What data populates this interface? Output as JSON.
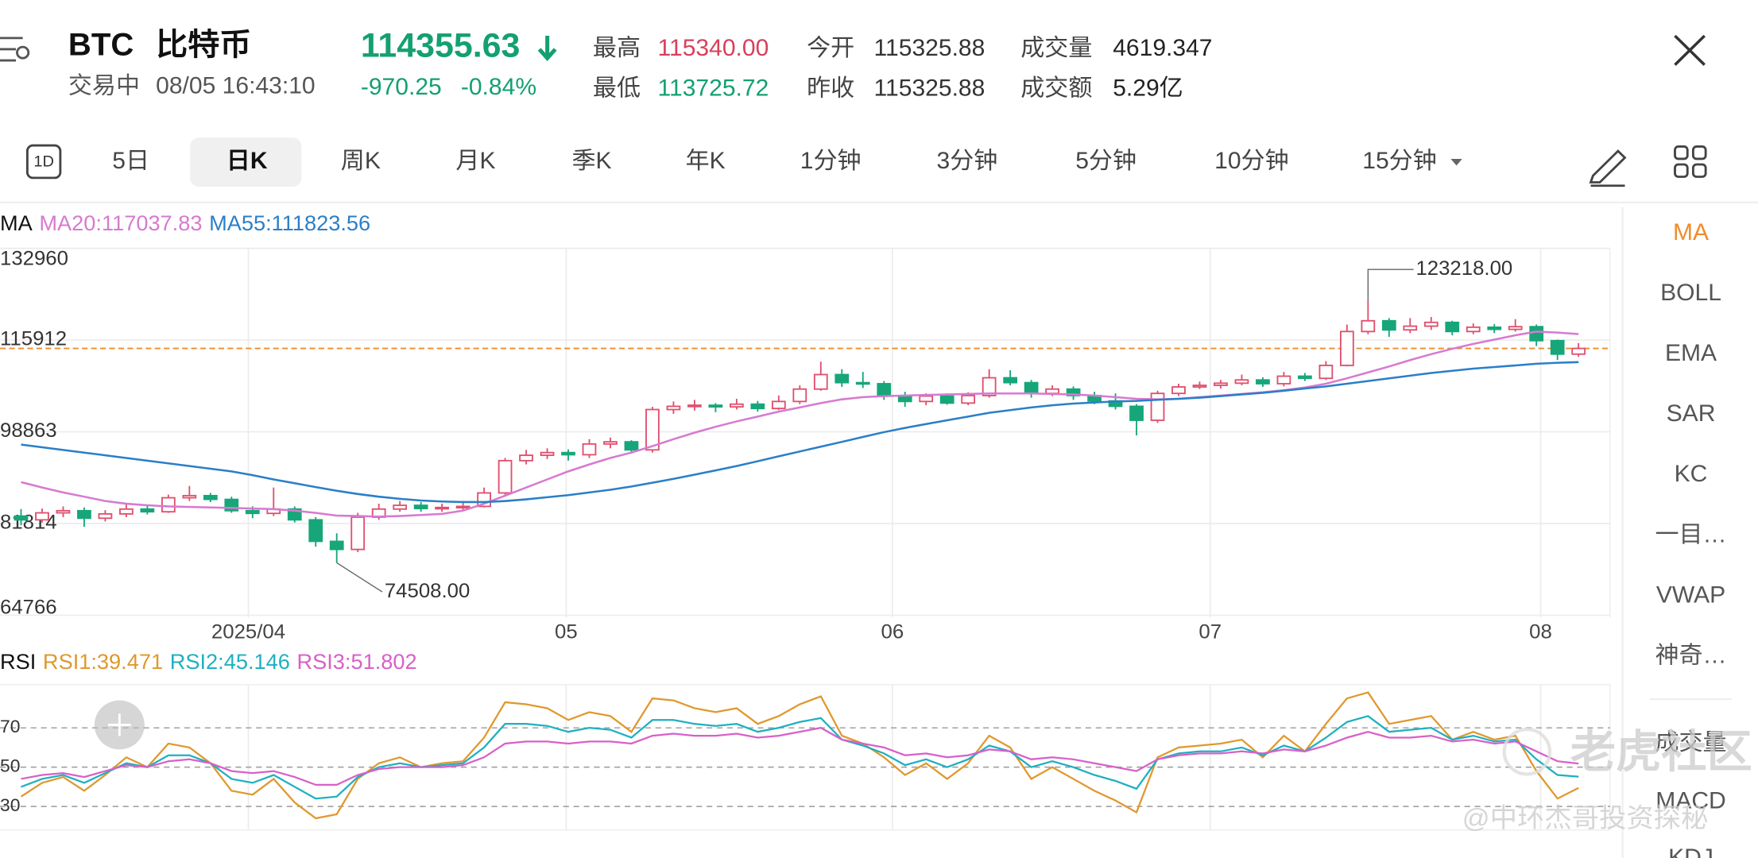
{
  "header": {
    "symbol": "BTC",
    "name": "比特币",
    "status": "交易中",
    "time": "08/05 16:43:10",
    "price": "114355.63",
    "change": "-970.25",
    "change_pct": "-0.84%",
    "stats": [
      {
        "label": "最高",
        "value": "115340.00",
        "color": "#d8405a"
      },
      {
        "label": "最低",
        "value": "113725.72",
        "color": "#14a070"
      },
      {
        "label": "今开",
        "value": "115325.88",
        "color": "#333333"
      },
      {
        "label": "昨收",
        "value": "115325.88",
        "color": "#333333"
      },
      {
        "label": "成交量",
        "value": "4619.347",
        "color": "#222222"
      },
      {
        "label": "成交额",
        "value": "5.29亿",
        "color": "#222222"
      }
    ]
  },
  "calendar_icon": "1D",
  "tabs": [
    "5日",
    "日K",
    "周K",
    "月K",
    "季K",
    "年K",
    "1分钟",
    "3分钟",
    "5分钟",
    "10分钟",
    "15分钟"
  ],
  "selected_tab": 1,
  "indicators": [
    "MA",
    "BOLL",
    "EMA",
    "SAR",
    "KC",
    "一目…",
    "VWAP",
    "神奇…",
    "成交量",
    "MACD",
    "KDJ"
  ],
  "active_indicator": 0,
  "chart": {
    "type": "candlestick",
    "legend_label": "MA",
    "up_color": "#e0506e",
    "down_color": "#17a67a",
    "ylim": [
      64766,
      132960
    ],
    "yticks": [
      132960,
      115912,
      98863,
      81814,
      64766
    ],
    "xlim": [
      -1,
      75.5
    ],
    "xticks": [
      {
        "value": 10.8,
        "label": "2025/04"
      },
      {
        "value": 25.9,
        "label": "05"
      },
      {
        "value": 41.4,
        "label": "06"
      },
      {
        "value": 56.5,
        "label": "07"
      },
      {
        "value": 72.2,
        "label": "08"
      }
    ],
    "last_price": 114355.63,
    "last_price_color": "#f08c2a",
    "candles": [
      [
        83200,
        84500,
        81500,
        82500
      ],
      [
        82500,
        84600,
        82000,
        83800
      ],
      [
        83800,
        85000,
        83000,
        84200
      ],
      [
        84200,
        84800,
        81200,
        82800
      ],
      [
        82800,
        84300,
        82200,
        83600
      ],
      [
        83600,
        85500,
        83000,
        84500
      ],
      [
        84500,
        85200,
        83500,
        84000
      ],
      [
        84000,
        87200,
        83800,
        86600
      ],
      [
        86600,
        88800,
        86000,
        87000
      ],
      [
        87000,
        87500,
        85800,
        86300
      ],
      [
        86300,
        86800,
        83800,
        84200
      ],
      [
        84200,
        85000,
        82800,
        83700
      ],
      [
        83700,
        88500,
        83200,
        84500
      ],
      [
        84500,
        85000,
        82000,
        82500
      ],
      [
        82500,
        83000,
        77500,
        78500
      ],
      [
        78500,
        80000,
        74508,
        77000
      ],
      [
        77000,
        83800,
        76500,
        83000
      ],
      [
        83000,
        85500,
        82500,
        84500
      ],
      [
        84500,
        86000,
        84000,
        85200
      ],
      [
        85200,
        85800,
        84000,
        84600
      ],
      [
        84600,
        85500,
        84000,
        84800
      ],
      [
        84800,
        86000,
        84300,
        85000
      ],
      [
        85000,
        88500,
        84800,
        87500
      ],
      [
        87500,
        94000,
        87200,
        93500
      ],
      [
        93500,
        95500,
        92800,
        94500
      ],
      [
        94500,
        95800,
        93800,
        95000
      ],
      [
        95000,
        95600,
        93500,
        94600
      ],
      [
        94600,
        97500,
        94000,
        96600
      ],
      [
        96600,
        97800,
        95800,
        97000
      ],
      [
        97000,
        97300,
        94800,
        95500
      ],
      [
        95500,
        103500,
        95000,
        103000
      ],
      [
        103000,
        104500,
        102200,
        103600
      ],
      [
        103600,
        104800,
        102800,
        103800
      ],
      [
        103800,
        104200,
        102500,
        103500
      ],
      [
        103500,
        105000,
        103000,
        104000
      ],
      [
        104000,
        104600,
        102600,
        103200
      ],
      [
        103200,
        105600,
        102900,
        104500
      ],
      [
        104500,
        107500,
        104000,
        106800
      ],
      [
        106800,
        111900,
        106500,
        109500
      ],
      [
        109500,
        110500,
        107200,
        108000
      ],
      [
        108000,
        110000,
        107000,
        107800
      ],
      [
        107800,
        108300,
        104800,
        105500
      ],
      [
        105500,
        106300,
        103500,
        104500
      ],
      [
        104500,
        106000,
        103800,
        105500
      ],
      [
        105500,
        106000,
        103900,
        104200
      ],
      [
        104200,
        106200,
        103800,
        105600
      ],
      [
        105600,
        110500,
        105200,
        108900
      ],
      [
        108900,
        110300,
        107500,
        108000
      ],
      [
        108000,
        108500,
        105200,
        106000
      ],
      [
        106000,
        107500,
        105500,
        106800
      ],
      [
        106800,
        107300,
        104800,
        105600
      ],
      [
        105600,
        106300,
        104000,
        104600
      ],
      [
        104600,
        106000,
        103000,
        103600
      ],
      [
        103600,
        104000,
        98200,
        101000
      ],
      [
        101000,
        106500,
        100500,
        106000
      ],
      [
        106000,
        107800,
        105500,
        107200
      ],
      [
        107200,
        108200,
        106800,
        107500
      ],
      [
        107500,
        108500,
        106900,
        107900
      ],
      [
        107900,
        109500,
        107500,
        108500
      ],
      [
        108500,
        109000,
        107200,
        107800
      ],
      [
        107800,
        110000,
        107300,
        109200
      ],
      [
        109200,
        109800,
        108300,
        108800
      ],
      [
        108800,
        112000,
        108500,
        111200
      ],
      [
        111200,
        118800,
        111000,
        117500
      ],
      [
        117500,
        123218,
        117000,
        119500
      ],
      [
        119500,
        120000,
        116500,
        117800
      ],
      [
        117800,
        120000,
        117200,
        118500
      ],
      [
        118500,
        120200,
        117800,
        119200
      ],
      [
        119200,
        119500,
        116800,
        117500
      ],
      [
        117500,
        119000,
        117000,
        118300
      ],
      [
        118300,
        118900,
        117200,
        117900
      ],
      [
        117900,
        119800,
        117500,
        118400
      ],
      [
        118400,
        118800,
        114800,
        115800
      ],
      [
        115800,
        116000,
        112200,
        113300
      ],
      [
        113300,
        115340,
        112800,
        114355.63
      ]
    ],
    "annotations": [
      {
        "candle": 64,
        "label": "123218.00"
      },
      {
        "candle": 15,
        "label": "74508.00"
      }
    ],
    "series": [
      {
        "name": "MA20:117037.83",
        "color": "#d77ad0",
        "values": [
          89500,
          88500,
          87600,
          86800,
          86000,
          85500,
          85200,
          85000,
          84900,
          84800,
          84700,
          84600,
          84500,
          84200,
          83800,
          83300,
          83200,
          83100,
          83200,
          83400,
          83600,
          84200,
          85500,
          87000,
          88500,
          90000,
          91500,
          92800,
          94000,
          95000,
          96200,
          97500,
          98700,
          99800,
          100800,
          101700,
          102600,
          103400,
          104200,
          104900,
          105300,
          105500,
          105600,
          105700,
          105800,
          105900,
          106000,
          106000,
          106000,
          105900,
          105800,
          105600,
          105300,
          105000,
          104900,
          105000,
          105300,
          105600,
          105900,
          106200,
          106600,
          107100,
          107800,
          108800,
          109900,
          111000,
          112200,
          113300,
          114300,
          115200,
          116000,
          116800,
          117500,
          117300,
          117037.83
        ]
      },
      {
        "name": "MA55:111823.56",
        "color": "#2a7fc8",
        "values": [
          96500,
          96000,
          95500,
          95000,
          94500,
          94000,
          93500,
          93000,
          92500,
          92000,
          91500,
          90800,
          90000,
          89300,
          88600,
          87900,
          87300,
          86800,
          86400,
          86100,
          85900,
          85800,
          85800,
          86000,
          86300,
          86700,
          87100,
          87600,
          88100,
          88700,
          89400,
          90100,
          90900,
          91700,
          92500,
          93400,
          94300,
          95200,
          96100,
          97000,
          97900,
          98800,
          99600,
          100300,
          101000,
          101700,
          102400,
          102900,
          103400,
          103800,
          104100,
          104300,
          104500,
          104600,
          104800,
          105000,
          105200,
          105500,
          105800,
          106100,
          106500,
          106900,
          107300,
          107800,
          108300,
          108800,
          109300,
          109800,
          110200,
          110600,
          110900,
          111200,
          111500,
          111700,
          111823.56
        ]
      }
    ]
  },
  "rsi": {
    "type": "line",
    "legend_label": "RSI",
    "ylim": [
      18,
      92
    ],
    "yticks": [
      70,
      50,
      30
    ],
    "series": [
      {
        "name": "RSI1:39.471",
        "color": "#e0982e",
        "values": [
          35,
          42,
          45,
          38,
          46,
          55,
          50,
          62,
          60,
          52,
          38,
          36,
          44,
          32,
          24,
          26,
          44,
          52,
          55,
          50,
          52,
          53,
          65,
          83,
          82,
          80,
          74,
          78,
          76,
          68,
          85,
          84,
          80,
          78,
          80,
          72,
          76,
          82,
          86,
          66,
          62,
          55,
          46,
          52,
          44,
          52,
          66,
          60,
          44,
          50,
          44,
          38,
          33,
          27,
          55,
          60,
          61,
          62,
          64,
          55,
          66,
          58,
          72,
          85,
          88,
          72,
          74,
          76,
          64,
          68,
          64,
          66,
          48,
          34,
          39.471
        ]
      },
      {
        "name": "RSI2:45.146",
        "color": "#1fb0c0",
        "values": [
          40,
          44,
          46,
          42,
          47,
          52,
          50,
          56,
          56,
          52,
          44,
          42,
          46,
          40,
          34,
          35,
          45,
          50,
          52,
          50,
          51,
          52,
          60,
          72,
          72,
          71,
          68,
          70,
          69,
          65,
          74,
          74,
          72,
          71,
          72,
          68,
          70,
          73,
          75,
          64,
          61,
          57,
          51,
          54,
          50,
          54,
          61,
          58,
          50,
          53,
          50,
          46,
          43,
          39,
          54,
          57,
          58,
          58,
          60,
          56,
          61,
          58,
          65,
          73,
          76,
          68,
          69,
          70,
          64,
          66,
          63,
          64,
          54,
          46,
          45.146
        ]
      },
      {
        "name": "RSI3:51.802",
        "color": "#d860c8",
        "values": [
          44,
          46,
          47,
          45,
          48,
          51,
          50,
          53,
          54,
          52,
          48,
          47,
          48,
          45,
          41,
          41,
          46,
          49,
          50,
          50,
          50,
          51,
          55,
          62,
          63,
          63,
          62,
          63,
          63,
          62,
          66,
          67,
          66,
          66,
          67,
          65,
          66,
          68,
          70,
          64,
          62,
          60,
          56,
          57,
          55,
          56,
          59,
          58,
          54,
          55,
          54,
          52,
          50,
          48,
          54,
          56,
          57,
          57,
          58,
          57,
          59,
          58,
          61,
          65,
          68,
          65,
          65,
          66,
          63,
          64,
          62,
          63,
          58,
          53,
          51.802
        ]
      }
    ]
  },
  "watermark": [
    "老虎社区",
    "@中环杰哥投资探秘"
  ]
}
